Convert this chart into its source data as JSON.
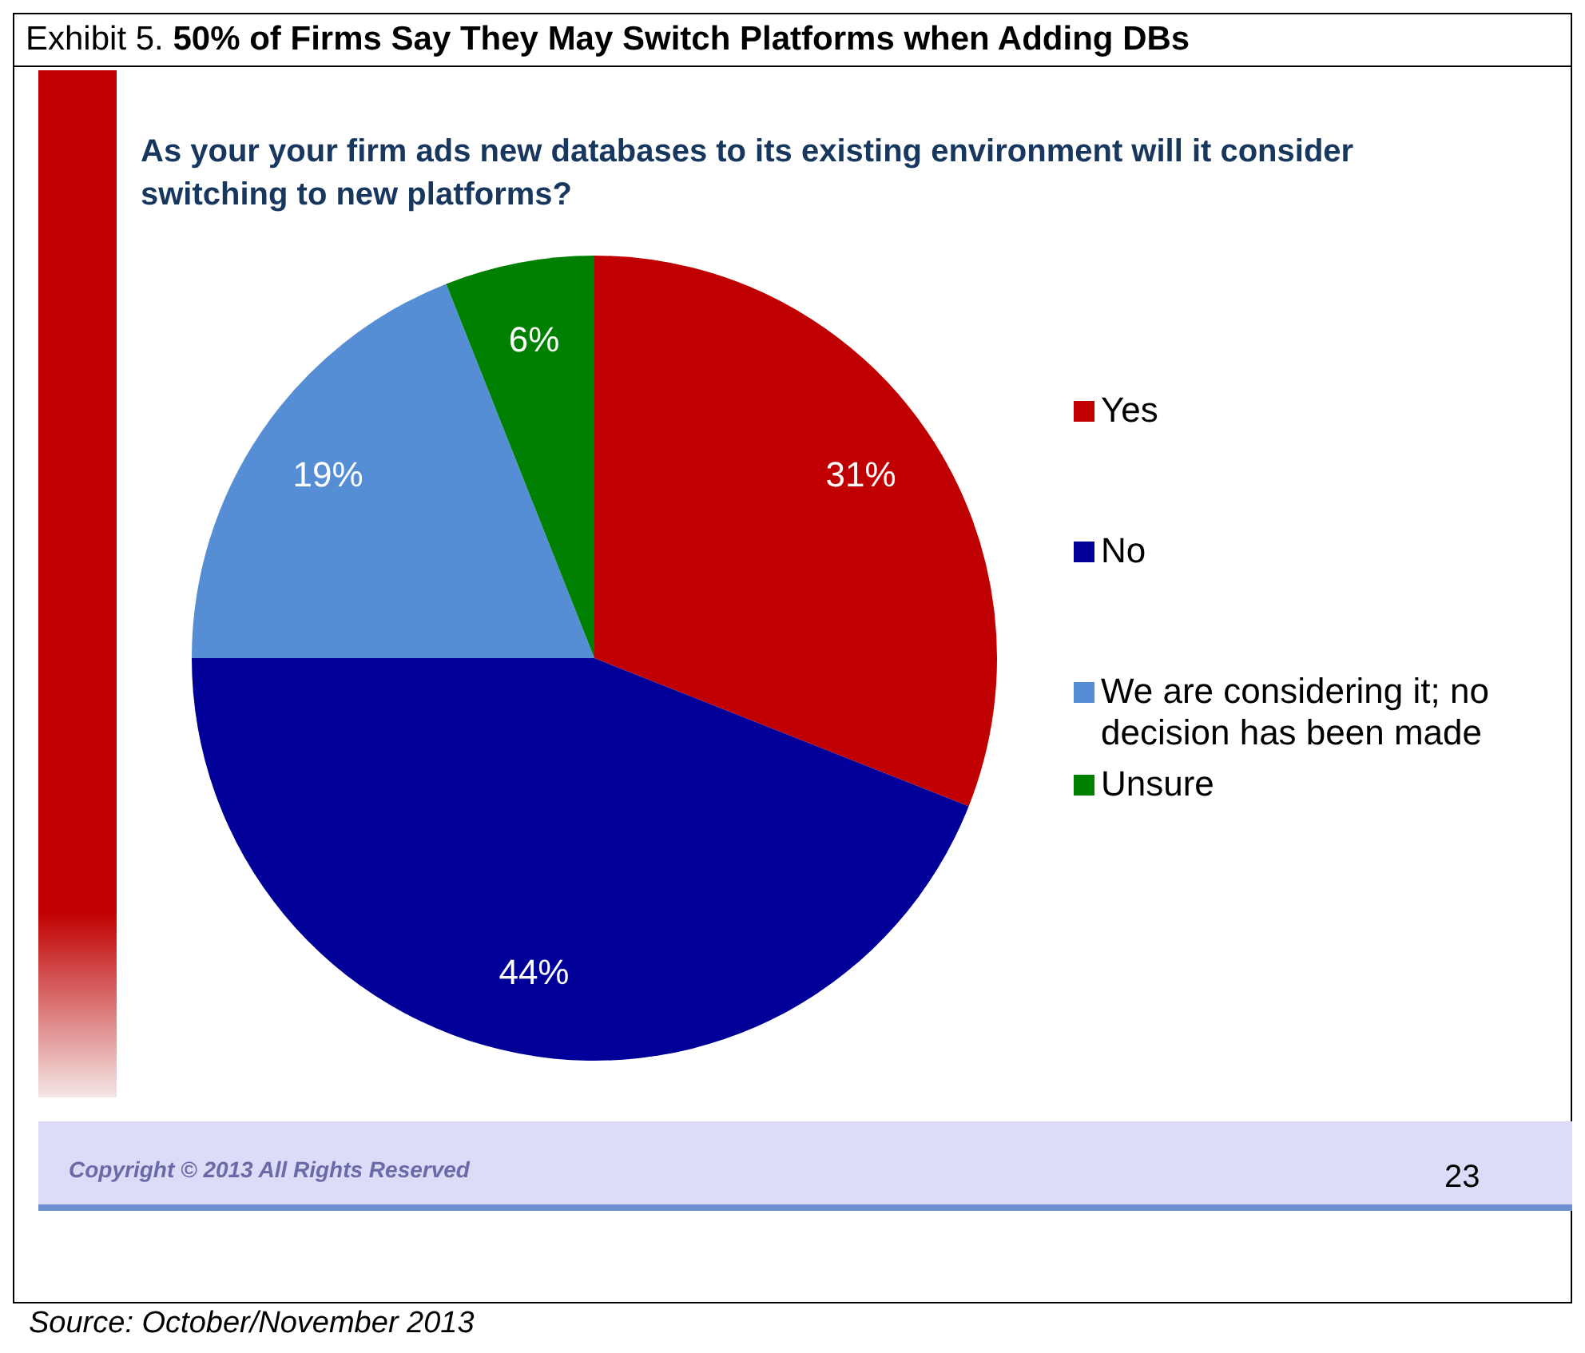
{
  "chart_data": {
    "type": "pie",
    "title": "Exhibit 5. 50% of Firms Say They May Switch Platforms when Adding DBs",
    "subtitle": "As your your firm ads new databases to its existing environment will it consider switching to new platforms?",
    "categories": [
      "Yes",
      "No",
      "We are considering it; no decision has been made",
      "Unsure"
    ],
    "values": [
      31,
      44,
      19,
      6
    ],
    "colors": [
      "#c00000",
      "#000099",
      "#558ed5",
      "#008000"
    ],
    "value_labels": [
      "31%",
      "44%",
      "19%",
      "6%"
    ],
    "legend": "right",
    "annotations": [
      "Copyright © 2013 All Rights Reserved",
      "23",
      "Source: October/November 2013"
    ]
  }
}
